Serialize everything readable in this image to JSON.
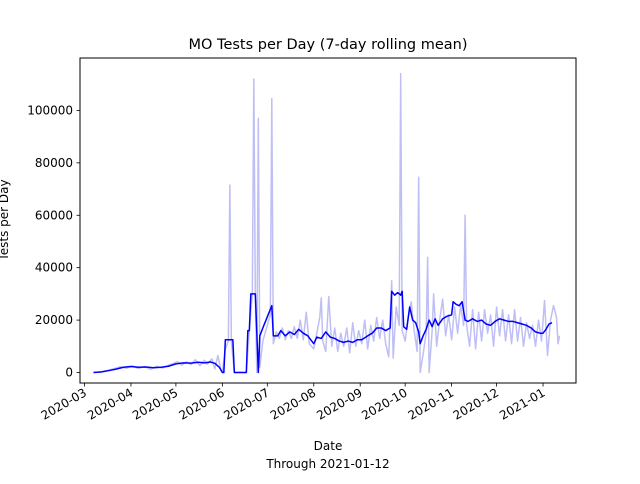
{
  "chart_data": {
    "type": "line",
    "title": "MO Tests per Day (7-day rolling mean)",
    "xlabel": "Date",
    "xlabel_note": "Through 2021-01-12",
    "ylabel": "Tests per Day",
    "ylim": [
      -4000,
      120000
    ],
    "xlim": [
      "2020-02-27",
      "2021-01-23"
    ],
    "grid": false,
    "y_ticks": [
      0,
      20000,
      40000,
      60000,
      80000,
      100000
    ],
    "x_ticks": [
      "2020-03",
      "2020-04",
      "2020-05",
      "2020-06",
      "2020-07",
      "2020-08",
      "2020-09",
      "2020-10",
      "2020-11",
      "2020-12",
      "2021-01"
    ],
    "series": [
      {
        "role": "daily",
        "color": "#bfbff5",
        "points": [
          [
            "2020-03-07",
            0
          ],
          [
            "2020-03-12",
            300
          ],
          [
            "2020-03-17",
            900
          ],
          [
            "2020-03-21",
            1500
          ],
          [
            "2020-03-25",
            2200
          ],
          [
            "2020-03-29",
            1600
          ],
          [
            "2020-04-02",
            2500
          ],
          [
            "2020-04-06",
            1500
          ],
          [
            "2020-04-10",
            2300
          ],
          [
            "2020-04-14",
            1200
          ],
          [
            "2020-04-18",
            2400
          ],
          [
            "2020-04-22",
            1700
          ],
          [
            "2020-04-26",
            2800
          ],
          [
            "2020-04-30",
            3600
          ],
          [
            "2020-05-02",
            4200
          ],
          [
            "2020-05-05",
            2800
          ],
          [
            "2020-05-08",
            4100
          ],
          [
            "2020-05-11",
            3000
          ],
          [
            "2020-05-14",
            4900
          ],
          [
            "2020-05-17",
            2600
          ],
          [
            "2020-05-20",
            4700
          ],
          [
            "2020-05-22",
            3200
          ],
          [
            "2020-05-25",
            5200
          ],
          [
            "2020-05-27",
            1400
          ],
          [
            "2020-05-29",
            6500
          ],
          [
            "2020-05-31",
            1000
          ],
          [
            "2020-06-01",
            0
          ],
          [
            "2020-06-03",
            9000
          ],
          [
            "2020-06-05",
            12000
          ],
          [
            "2020-06-06",
            71500
          ],
          [
            "2020-06-07",
            12000
          ],
          [
            "2020-06-09",
            0
          ],
          [
            "2020-06-12",
            0
          ],
          [
            "2020-06-15",
            0
          ],
          [
            "2020-06-17",
            0
          ],
          [
            "2020-06-19",
            16000
          ],
          [
            "2020-06-21",
            30000
          ],
          [
            "2020-06-22",
            112000
          ],
          [
            "2020-06-23",
            30000
          ],
          [
            "2020-06-24",
            0
          ],
          [
            "2020-06-25",
            97000
          ],
          [
            "2020-06-26",
            2000
          ],
          [
            "2020-06-28",
            12000
          ],
          [
            "2020-06-30",
            16000
          ],
          [
            "2020-07-03",
            22000
          ],
          [
            "2020-07-04",
            104500
          ],
          [
            "2020-07-05",
            11000
          ],
          [
            "2020-07-07",
            15500
          ],
          [
            "2020-07-09",
            13000
          ],
          [
            "2020-07-11",
            17000
          ],
          [
            "2020-07-13",
            12500
          ],
          [
            "2020-07-15",
            16000
          ],
          [
            "2020-07-17",
            13000
          ],
          [
            "2020-07-19",
            17500
          ],
          [
            "2020-07-21",
            13000
          ],
          [
            "2020-07-23",
            20000
          ],
          [
            "2020-07-25",
            12500
          ],
          [
            "2020-07-27",
            23000
          ],
          [
            "2020-07-29",
            11000
          ],
          [
            "2020-08-01",
            9000
          ],
          [
            "2020-08-03",
            15000
          ],
          [
            "2020-08-05",
            21000
          ],
          [
            "2020-08-06",
            28500
          ],
          [
            "2020-08-07",
            12000
          ],
          [
            "2020-08-09",
            8000
          ],
          [
            "2020-08-11",
            29000
          ],
          [
            "2020-08-13",
            10000
          ],
          [
            "2020-08-15",
            17000
          ],
          [
            "2020-08-17",
            8000
          ],
          [
            "2020-08-19",
            15000
          ],
          [
            "2020-08-21",
            10000
          ],
          [
            "2020-08-23",
            17000
          ],
          [
            "2020-08-25",
            7500
          ],
          [
            "2020-08-27",
            19000
          ],
          [
            "2020-08-29",
            10000
          ],
          [
            "2020-08-31",
            16000
          ],
          [
            "2020-09-02",
            11000
          ],
          [
            "2020-09-04",
            20000
          ],
          [
            "2020-09-06",
            9000
          ],
          [
            "2020-09-08",
            18000
          ],
          [
            "2020-09-10",
            12000
          ],
          [
            "2020-09-12",
            21000
          ],
          [
            "2020-09-14",
            13000
          ],
          [
            "2020-09-16",
            20000
          ],
          [
            "2020-09-18",
            11000
          ],
          [
            "2020-09-20",
            6000
          ],
          [
            "2020-09-22",
            35000
          ],
          [
            "2020-09-23",
            5500
          ],
          [
            "2020-09-25",
            25000
          ],
          [
            "2020-09-27",
            18000
          ],
          [
            "2020-09-28",
            114000
          ],
          [
            "2020-09-29",
            16000
          ],
          [
            "2020-10-01",
            12000
          ],
          [
            "2020-10-03",
            21000
          ],
          [
            "2020-10-05",
            27000
          ],
          [
            "2020-10-07",
            16000
          ],
          [
            "2020-10-09",
            8000
          ],
          [
            "2020-10-10",
            74500
          ],
          [
            "2020-10-11",
            0
          ],
          [
            "2020-10-13",
            7000
          ],
          [
            "2020-10-15",
            15000
          ],
          [
            "2020-10-16",
            44000
          ],
          [
            "2020-10-17",
            0
          ],
          [
            "2020-10-19",
            16000
          ],
          [
            "2020-10-20",
            30000
          ],
          [
            "2020-10-22",
            10000
          ],
          [
            "2020-10-24",
            20000
          ],
          [
            "2020-10-26",
            28000
          ],
          [
            "2020-10-28",
            14000
          ],
          [
            "2020-10-30",
            22000
          ],
          [
            "2020-11-01",
            12500
          ],
          [
            "2020-11-03",
            25000
          ],
          [
            "2020-11-05",
            15000
          ],
          [
            "2020-11-07",
            26000
          ],
          [
            "2020-11-09",
            18000
          ],
          [
            "2020-11-10",
            60000
          ],
          [
            "2020-11-11",
            18000
          ],
          [
            "2020-11-13",
            10000
          ],
          [
            "2020-11-15",
            24000
          ],
          [
            "2020-11-17",
            9000
          ],
          [
            "2020-11-19",
            23000
          ],
          [
            "2020-11-21",
            12000
          ],
          [
            "2020-11-23",
            24000
          ],
          [
            "2020-11-25",
            15000
          ],
          [
            "2020-11-27",
            22000
          ],
          [
            "2020-11-29",
            10000
          ],
          [
            "2020-12-01",
            25000
          ],
          [
            "2020-12-03",
            14000
          ],
          [
            "2020-12-05",
            24000
          ],
          [
            "2020-12-07",
            12000
          ],
          [
            "2020-12-09",
            22000
          ],
          [
            "2020-12-11",
            11000
          ],
          [
            "2020-12-13",
            24000
          ],
          [
            "2020-12-15",
            12000
          ],
          [
            "2020-12-17",
            21000
          ],
          [
            "2020-12-19",
            10000
          ],
          [
            "2020-12-21",
            19000
          ],
          [
            "2020-12-23",
            13000
          ],
          [
            "2020-12-25",
            18000
          ],
          [
            "2020-12-27",
            10000
          ],
          [
            "2020-12-29",
            20000
          ],
          [
            "2020-12-31",
            12000
          ],
          [
            "2021-01-02",
            27500
          ],
          [
            "2021-01-04",
            6500
          ],
          [
            "2021-01-06",
            20000
          ],
          [
            "2021-01-08",
            25500
          ],
          [
            "2021-01-10",
            21000
          ],
          [
            "2021-01-11",
            11000
          ],
          [
            "2021-01-12",
            14000
          ]
        ]
      },
      {
        "role": "rolling-mean",
        "color": "#0000ff",
        "points": [
          [
            "2020-03-07",
            0
          ],
          [
            "2020-03-12",
            200
          ],
          [
            "2020-03-17",
            700
          ],
          [
            "2020-03-22",
            1300
          ],
          [
            "2020-03-27",
            2000
          ],
          [
            "2020-04-01",
            2300
          ],
          [
            "2020-04-06",
            2000
          ],
          [
            "2020-04-11",
            2100
          ],
          [
            "2020-04-16",
            1800
          ],
          [
            "2020-04-21",
            2000
          ],
          [
            "2020-04-26",
            2400
          ],
          [
            "2020-05-01",
            3300
          ],
          [
            "2020-05-06",
            3700
          ],
          [
            "2020-05-11",
            3600
          ],
          [
            "2020-05-16",
            3900
          ],
          [
            "2020-05-20",
            3700
          ],
          [
            "2020-05-24",
            4000
          ],
          [
            "2020-05-27",
            3500
          ],
          [
            "2020-05-30",
            2000
          ],
          [
            "2020-06-01",
            0
          ],
          [
            "2020-06-02",
            0
          ],
          [
            "2020-06-03",
            12500
          ],
          [
            "2020-06-08",
            12500
          ],
          [
            "2020-06-09",
            0
          ],
          [
            "2020-06-17",
            0
          ],
          [
            "2020-06-18",
            16000
          ],
          [
            "2020-06-19",
            16000
          ],
          [
            "2020-06-20",
            30000
          ],
          [
            "2020-06-23",
            30000
          ],
          [
            "2020-06-24",
            15000
          ],
          [
            "2020-06-25",
            0
          ],
          [
            "2020-06-26",
            14000
          ],
          [
            "2020-06-28",
            17000
          ],
          [
            "2020-07-04",
            25500
          ],
          [
            "2020-07-05",
            14000
          ],
          [
            "2020-07-08",
            14000
          ],
          [
            "2020-07-10",
            16000
          ],
          [
            "2020-07-13",
            14000
          ],
          [
            "2020-07-16",
            15500
          ],
          [
            "2020-07-19",
            14500
          ],
          [
            "2020-07-22",
            16500
          ],
          [
            "2020-07-25",
            15000
          ],
          [
            "2020-07-28",
            14000
          ],
          [
            "2020-08-01",
            11000
          ],
          [
            "2020-08-03",
            13500
          ],
          [
            "2020-08-06",
            13000
          ],
          [
            "2020-08-09",
            15500
          ],
          [
            "2020-08-12",
            13500
          ],
          [
            "2020-08-15",
            13000
          ],
          [
            "2020-08-18",
            12000
          ],
          [
            "2020-08-21",
            11500
          ],
          [
            "2020-08-24",
            12000
          ],
          [
            "2020-08-27",
            11500
          ],
          [
            "2020-08-30",
            12500
          ],
          [
            "2020-09-02",
            12500
          ],
          [
            "2020-09-06",
            14000
          ],
          [
            "2020-09-09",
            15000
          ],
          [
            "2020-09-12",
            17000
          ],
          [
            "2020-09-15",
            17000
          ],
          [
            "2020-09-18",
            16000
          ],
          [
            "2020-09-21",
            17000
          ],
          [
            "2020-09-22",
            31000
          ],
          [
            "2020-09-24",
            29500
          ],
          [
            "2020-09-26",
            30500
          ],
          [
            "2020-09-28",
            29500
          ],
          [
            "2020-09-29",
            31000
          ],
          [
            "2020-09-30",
            17500
          ],
          [
            "2020-10-02",
            16500
          ],
          [
            "2020-10-04",
            25000
          ],
          [
            "2020-10-06",
            20000
          ],
          [
            "2020-10-08",
            19000
          ],
          [
            "2020-10-10",
            15500
          ],
          [
            "2020-10-11",
            11000
          ],
          [
            "2020-10-13",
            14000
          ],
          [
            "2020-10-15",
            16500
          ],
          [
            "2020-10-17",
            20000
          ],
          [
            "2020-10-19",
            17500
          ],
          [
            "2020-10-21",
            20500
          ],
          [
            "2020-10-23",
            18000
          ],
          [
            "2020-10-26",
            20500
          ],
          [
            "2020-10-29",
            21500
          ],
          [
            "2020-11-01",
            22000
          ],
          [
            "2020-11-02",
            27000
          ],
          [
            "2020-11-04",
            26000
          ],
          [
            "2020-11-06",
            25500
          ],
          [
            "2020-11-08",
            27000
          ],
          [
            "2020-11-10",
            20000
          ],
          [
            "2020-11-12",
            19500
          ],
          [
            "2020-11-15",
            20500
          ],
          [
            "2020-11-18",
            19500
          ],
          [
            "2020-11-21",
            20000
          ],
          [
            "2020-11-24",
            18500
          ],
          [
            "2020-11-27",
            18000
          ],
          [
            "2020-11-30",
            19500
          ],
          [
            "2020-12-03",
            20500
          ],
          [
            "2020-12-06",
            20000
          ],
          [
            "2020-12-09",
            19500
          ],
          [
            "2020-12-12",
            19500
          ],
          [
            "2020-12-15",
            19000
          ],
          [
            "2020-12-18",
            18500
          ],
          [
            "2020-12-21",
            18000
          ],
          [
            "2020-12-24",
            17000
          ],
          [
            "2020-12-27",
            15500
          ],
          [
            "2020-12-30",
            15000
          ],
          [
            "2021-01-01",
            15000
          ],
          [
            "2021-01-03",
            16500
          ],
          [
            "2021-01-05",
            18500
          ],
          [
            "2021-01-07",
            19000
          ]
        ]
      }
    ]
  }
}
